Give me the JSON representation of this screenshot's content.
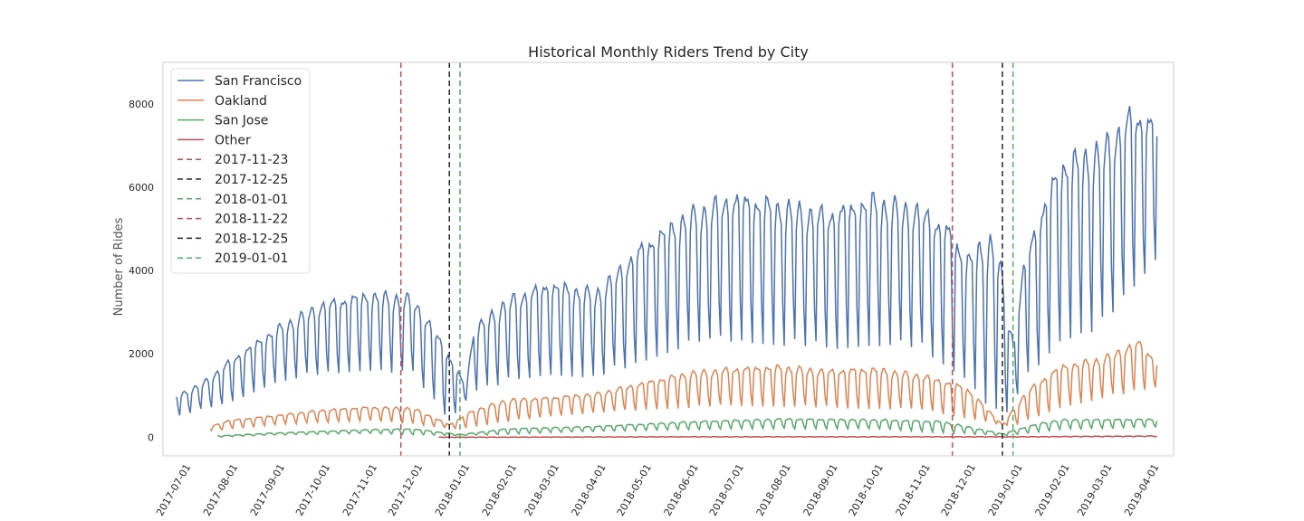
{
  "chart_data": {
    "type": "line",
    "title": "Historical Monthly Riders Trend by City",
    "xlabel": "",
    "ylabel": "Number of Rides",
    "x_range": [
      "2017-06-19",
      "2019-04-17"
    ],
    "ylim": [
      -450,
      9000
    ],
    "y_ticks": [
      0,
      2000,
      4000,
      6000,
      8000
    ],
    "x_ticks": [
      "2017-07-01",
      "2017-08-01",
      "2017-09-01",
      "2017-10-01",
      "2017-11-01",
      "2017-12-01",
      "2018-01-01",
      "2018-02-01",
      "2018-03-01",
      "2018-04-01",
      "2018-05-01",
      "2018-06-01",
      "2018-07-01",
      "2018-08-01",
      "2018-09-01",
      "2018-10-01",
      "2018-11-01",
      "2018-12-01",
      "2019-01-01",
      "2019-02-01",
      "2019-03-01",
      "2019-04-01"
    ],
    "grid": false,
    "legend_position": "upper-left",
    "pattern": "daily ride counts with strong weekly cycle (weekday peaks, weekend troughs)",
    "series": [
      {
        "name": "San Francisco",
        "color": "#4c72b0",
        "start": "2017-06-28",
        "end": "2019-04-06",
        "weekday_peak_envelope": [
          [
            "2017-06-28",
            1000
          ],
          [
            "2017-07-15",
            1300
          ],
          [
            "2017-08-01",
            1800
          ],
          [
            "2017-09-01",
            2600
          ],
          [
            "2017-10-01",
            3200
          ],
          [
            "2017-11-01",
            3450
          ],
          [
            "2017-11-20",
            3400
          ],
          [
            "2017-12-01",
            3350
          ],
          [
            "2017-12-20",
            2300
          ],
          [
            "2018-01-05",
            1200
          ],
          [
            "2018-01-10",
            2600
          ],
          [
            "2018-02-01",
            3300
          ],
          [
            "2018-03-01",
            3700
          ],
          [
            "2018-04-01",
            3500
          ],
          [
            "2018-04-15",
            4000
          ],
          [
            "2018-05-01",
            4600
          ],
          [
            "2018-06-01",
            5400
          ],
          [
            "2018-07-01",
            5800
          ],
          [
            "2018-08-01",
            5600
          ],
          [
            "2018-09-01",
            5400
          ],
          [
            "2018-10-01",
            5750
          ],
          [
            "2018-11-01",
            5500
          ],
          [
            "2018-11-20",
            5000
          ],
          [
            "2018-12-01",
            4300
          ],
          [
            "2018-12-20",
            4900
          ],
          [
            "2019-01-01",
            2300
          ],
          [
            "2019-01-10",
            4500
          ],
          [
            "2019-02-01",
            6600
          ],
          [
            "2019-03-01",
            7000
          ],
          [
            "2019-03-20",
            7800
          ],
          [
            "2019-04-06",
            7600
          ]
        ],
        "weekend_trough_envelope": [
          [
            "2017-06-28",
            500
          ],
          [
            "2017-08-01",
            800
          ],
          [
            "2017-09-01",
            1300
          ],
          [
            "2017-10-01",
            1500
          ],
          [
            "2017-11-01",
            1600
          ],
          [
            "2017-12-01",
            1500
          ],
          [
            "2017-12-25",
            400
          ],
          [
            "2018-01-10",
            1100
          ],
          [
            "2018-02-01",
            1300
          ],
          [
            "2018-03-01",
            1500
          ],
          [
            "2018-04-01",
            1400
          ],
          [
            "2018-05-01",
            1800
          ],
          [
            "2018-06-01",
            2200
          ],
          [
            "2018-07-01",
            2300
          ],
          [
            "2018-08-01",
            2200
          ],
          [
            "2018-09-01",
            2100
          ],
          [
            "2018-10-01",
            2200
          ],
          [
            "2018-11-01",
            2100
          ],
          [
            "2018-12-01",
            1400
          ],
          [
            "2018-12-25",
            300
          ],
          [
            "2019-01-10",
            1400
          ],
          [
            "2019-02-01",
            2300
          ],
          [
            "2019-03-01",
            2600
          ],
          [
            "2019-04-06",
            4300
          ]
        ],
        "peak_value": 8700
      },
      {
        "name": "Oakland",
        "color": "#dd8452",
        "start": "2017-07-20",
        "end": "2019-04-06",
        "weekday_peak_envelope": [
          [
            "2017-07-20",
            250
          ],
          [
            "2017-08-01",
            400
          ],
          [
            "2017-09-01",
            520
          ],
          [
            "2017-10-01",
            650
          ],
          [
            "2017-11-01",
            720
          ],
          [
            "2017-12-01",
            700
          ],
          [
            "2017-12-25",
            300
          ],
          [
            "2018-01-10",
            650
          ],
          [
            "2018-02-01",
            900
          ],
          [
            "2018-03-01",
            950
          ],
          [
            "2018-04-01",
            1050
          ],
          [
            "2018-05-01",
            1300
          ],
          [
            "2018-06-01",
            1550
          ],
          [
            "2018-07-01",
            1650
          ],
          [
            "2018-08-01",
            1700
          ],
          [
            "2018-09-01",
            1600
          ],
          [
            "2018-10-01",
            1650
          ],
          [
            "2018-11-01",
            1500
          ],
          [
            "2018-12-01",
            1200
          ],
          [
            "2018-12-25",
            300
          ],
          [
            "2019-01-10",
            1100
          ],
          [
            "2019-02-01",
            1700
          ],
          [
            "2019-03-01",
            1900
          ],
          [
            "2019-03-25",
            2300
          ],
          [
            "2019-04-06",
            1800
          ]
        ],
        "weekend_trough_envelope": [
          [
            "2017-07-20",
            150
          ],
          [
            "2017-09-01",
            300
          ],
          [
            "2017-11-01",
            400
          ],
          [
            "2018-01-01",
            200
          ],
          [
            "2018-03-01",
            500
          ],
          [
            "2018-05-01",
            650
          ],
          [
            "2018-07-01",
            750
          ],
          [
            "2018-09-01",
            700
          ],
          [
            "2018-11-01",
            650
          ],
          [
            "2019-01-01",
            250
          ],
          [
            "2019-02-01",
            700
          ],
          [
            "2019-04-06",
            1200
          ]
        ]
      },
      {
        "name": "San Jose",
        "color": "#55a868",
        "start": "2017-07-25",
        "end": "2019-04-06",
        "weekday_peak_envelope": [
          [
            "2017-07-25",
            30
          ],
          [
            "2017-09-01",
            100
          ],
          [
            "2017-11-01",
            180
          ],
          [
            "2017-12-01",
            200
          ],
          [
            "2018-01-01",
            60
          ],
          [
            "2018-02-01",
            200
          ],
          [
            "2018-04-01",
            260
          ],
          [
            "2018-06-01",
            370
          ],
          [
            "2018-08-01",
            440
          ],
          [
            "2018-10-01",
            420
          ],
          [
            "2018-11-15",
            380
          ],
          [
            "2018-12-25",
            80
          ],
          [
            "2019-01-15",
            300
          ],
          [
            "2019-02-01",
            420
          ],
          [
            "2019-04-06",
            430
          ]
        ],
        "weekend_trough_envelope": [
          [
            "2017-07-25",
            0
          ],
          [
            "2017-09-01",
            50
          ],
          [
            "2017-11-01",
            90
          ],
          [
            "2018-01-01",
            30
          ],
          [
            "2018-04-01",
            140
          ],
          [
            "2018-07-01",
            200
          ],
          [
            "2018-10-01",
            200
          ],
          [
            "2018-12-25",
            30
          ],
          [
            "2019-02-01",
            180
          ],
          [
            "2019-04-06",
            250
          ]
        ]
      },
      {
        "name": "Other",
        "color": "#c44e52",
        "start": "2017-12-18",
        "end": "2019-04-06",
        "weekday_peak_envelope": [
          [
            "2017-12-18",
            0
          ],
          [
            "2018-06-01",
            10
          ],
          [
            "2019-01-01",
            10
          ],
          [
            "2019-04-06",
            30
          ]
        ],
        "weekend_trough_envelope": [
          [
            "2017-12-18",
            -10
          ],
          [
            "2018-06-01",
            0
          ],
          [
            "2019-01-01",
            0
          ],
          [
            "2019-04-06",
            10
          ]
        ]
      }
    ],
    "reference_lines": [
      {
        "label": "2017-11-23",
        "date": "2017-11-23",
        "color": "#c44e52"
      },
      {
        "label": "2017-12-25",
        "date": "2017-12-25",
        "color": "#262626"
      },
      {
        "label": "2018-01-01",
        "date": "2018-01-01",
        "color": "#55a868"
      },
      {
        "label": "2018-11-22",
        "date": "2018-11-22",
        "color": "#c44e52"
      },
      {
        "label": "2018-12-25",
        "date": "2018-12-25",
        "color": "#262626"
      },
      {
        "label": "2019-01-01",
        "date": "2019-01-01",
        "color": "#55a868"
      }
    ]
  }
}
